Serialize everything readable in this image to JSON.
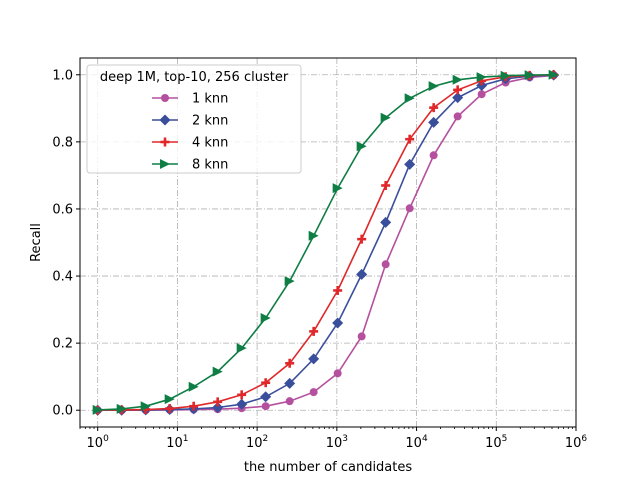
{
  "chart_data": {
    "type": "line",
    "xscale": "log",
    "xlim": [
      0.6,
      1000000
    ],
    "ylim": [
      -0.05,
      1.05
    ],
    "xlabel": "the number of candidates",
    "ylabel": "Recall",
    "grid": true,
    "legend": {
      "title": "deep 1M, top-10, 256 cluster",
      "placement": "upper-left"
    },
    "x_ticks": [
      1,
      10,
      100,
      1000,
      10000,
      100000,
      1000000
    ],
    "x_tick_labels": [
      {
        "base": "10",
        "exp": "0"
      },
      {
        "base": "10",
        "exp": "1"
      },
      {
        "base": "10",
        "exp": "2"
      },
      {
        "base": "10",
        "exp": "3"
      },
      {
        "base": "10",
        "exp": "4"
      },
      {
        "base": "10",
        "exp": "5"
      },
      {
        "base": "10",
        "exp": "6"
      }
    ],
    "y_ticks": [
      0.0,
      0.2,
      0.4,
      0.6,
      0.8,
      1.0
    ],
    "y_tick_labels": [
      "0.0",
      "0.2",
      "0.4",
      "0.6",
      "0.8",
      "1.0"
    ],
    "x": [
      1,
      2,
      4,
      8,
      16,
      32,
      64,
      128,
      256,
      512,
      1024,
      2048,
      4096,
      8192,
      16384,
      32768,
      65536,
      131072,
      262144,
      524288
    ],
    "series": [
      {
        "name": "1 knn",
        "color": "#b5509f",
        "marker": "circle",
        "values": [
          0.0,
          0.0,
          0.0,
          0.001,
          0.002,
          0.003,
          0.006,
          0.012,
          0.027,
          0.054,
          0.11,
          0.22,
          0.435,
          0.602,
          0.76,
          0.876,
          0.942,
          0.977,
          0.992,
          0.998
        ]
      },
      {
        "name": "2 knn",
        "color": "#3a4f9c",
        "marker": "diamond",
        "values": [
          0.0,
          0.0,
          0.001,
          0.002,
          0.004,
          0.008,
          0.018,
          0.04,
          0.08,
          0.153,
          0.26,
          0.405,
          0.56,
          0.733,
          0.858,
          0.932,
          0.968,
          0.988,
          0.996,
          0.999
        ]
      },
      {
        "name": "4 knn",
        "color": "#e0282a",
        "marker": "plus",
        "values": [
          0.0,
          0.001,
          0.002,
          0.005,
          0.012,
          0.025,
          0.046,
          0.082,
          0.14,
          0.235,
          0.357,
          0.51,
          0.67,
          0.808,
          0.902,
          0.955,
          0.982,
          0.994,
          0.998,
          1.0
        ]
      },
      {
        "name": "8 knn",
        "color": "#0e7e45",
        "marker": "triangle-right",
        "values": [
          0.001,
          0.004,
          0.012,
          0.033,
          0.07,
          0.115,
          0.185,
          0.275,
          0.385,
          0.52,
          0.662,
          0.787,
          0.872,
          0.93,
          0.966,
          0.985,
          0.993,
          0.997,
          0.999,
          1.0
        ]
      }
    ]
  }
}
